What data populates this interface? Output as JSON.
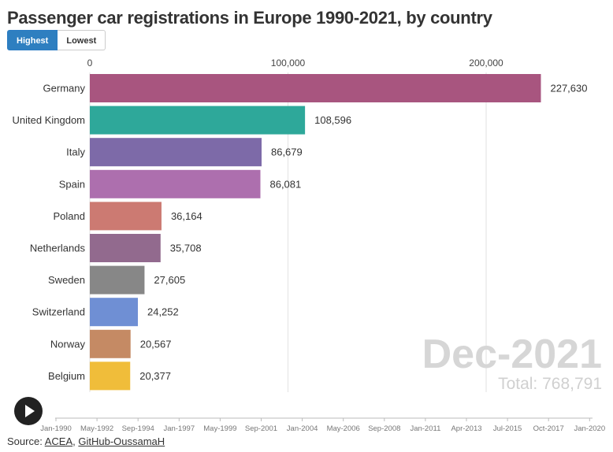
{
  "title": "Passenger car registrations in Europe 1990-2021, by country",
  "toggle": {
    "highest": "Highest",
    "lowest": "Lowest",
    "active": "highest"
  },
  "current_date": "Dec-2021",
  "total_text": "Total: 768,791",
  "source": {
    "label": "Source:",
    "link1": "ACEA",
    "separator": ", ",
    "link2": "GitHub-OussamaH"
  },
  "timeline": {
    "labels": [
      "Jan-1990",
      "May-1992",
      "Sep-1994",
      "Jan-1997",
      "May-1999",
      "Sep-2001",
      "Jan-2004",
      "May-2006",
      "Sep-2008",
      "Jan-2011",
      "Apr-2013",
      "Jul-2015",
      "Oct-2017",
      "Jan-2020"
    ]
  },
  "chart_data": {
    "type": "bar",
    "orientation": "horizontal",
    "title": "Passenger car registrations in Europe 1990-2021, by country",
    "xlim": [
      0,
      260000
    ],
    "xticks": [
      0,
      100000,
      200000
    ],
    "xtick_labels": [
      "0",
      "100,000",
      "200,000"
    ],
    "grid": true,
    "categories": [
      "Germany",
      "United Kingdom",
      "Italy",
      "Spain",
      "Poland",
      "Netherlands",
      "Sweden",
      "Switzerland",
      "Norway",
      "Belgium"
    ],
    "values": [
      227630,
      108596,
      86679,
      86081,
      36164,
      35708,
      27605,
      24252,
      20567,
      20377
    ],
    "value_labels": [
      "227,630",
      "108,596",
      "86,679",
      "86,081",
      "36,164",
      "35,708",
      "27,605",
      "24,252",
      "20,567",
      "20,377"
    ],
    "colors": [
      "#a8557f",
      "#2ea89a",
      "#7d6aa8",
      "#ad6fae",
      "#cc7a72",
      "#926a8e",
      "#878787",
      "#6f8fd4",
      "#c58a64",
      "#f0bd3a"
    ]
  }
}
